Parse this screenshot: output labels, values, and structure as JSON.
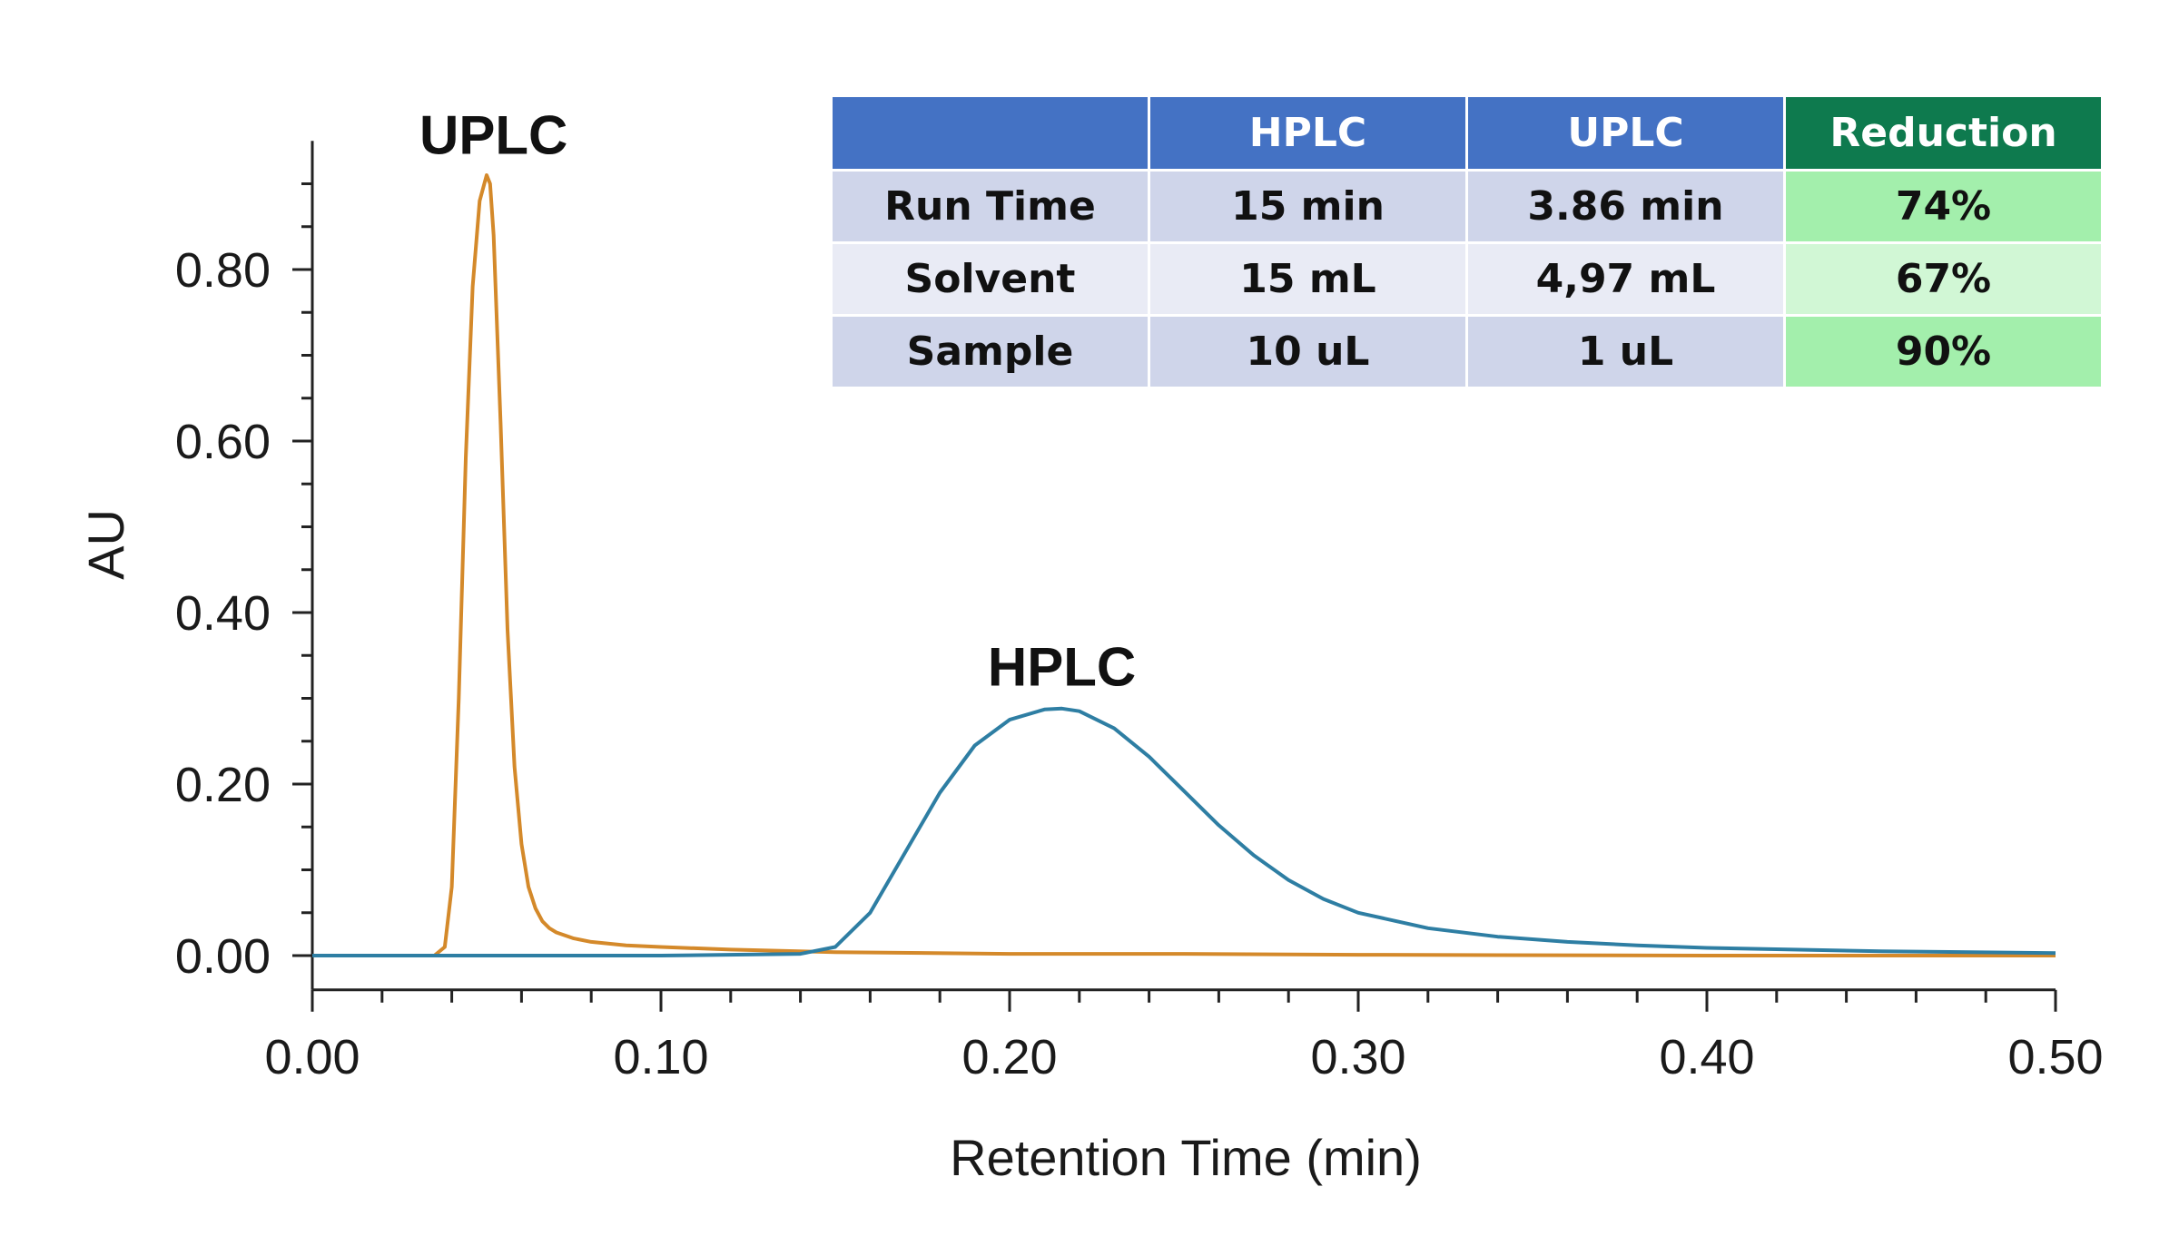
{
  "chart_data": {
    "type": "line",
    "title": "",
    "xlabel": "Retention Time (min)",
    "ylabel": "AU",
    "xlim": [
      0.0,
      0.5
    ],
    "ylim": [
      -0.04,
      0.95
    ],
    "x_ticks": [
      "0.00",
      "0.10",
      "0.20",
      "0.30",
      "0.40",
      "0.50"
    ],
    "y_ticks": [
      "0.00",
      "0.20",
      "0.40",
      "0.60",
      "0.80"
    ],
    "grid": false,
    "series": [
      {
        "name": "UPLC",
        "color": "#d4892a",
        "x": [
          0.0,
          0.025,
          0.035,
          0.038,
          0.04,
          0.042,
          0.044,
          0.046,
          0.048,
          0.05,
          0.051,
          0.052,
          0.054,
          0.056,
          0.058,
          0.06,
          0.062,
          0.064,
          0.066,
          0.068,
          0.07,
          0.075,
          0.08,
          0.09,
          0.1,
          0.12,
          0.15,
          0.2,
          0.25,
          0.3,
          0.4,
          0.5
        ],
        "y": [
          0.0,
          0.0,
          0.0,
          0.01,
          0.08,
          0.3,
          0.58,
          0.78,
          0.88,
          0.91,
          0.9,
          0.84,
          0.62,
          0.38,
          0.22,
          0.13,
          0.08,
          0.055,
          0.04,
          0.032,
          0.027,
          0.02,
          0.016,
          0.012,
          0.01,
          0.007,
          0.004,
          0.002,
          0.002,
          0.001,
          0.0,
          0.0
        ]
      },
      {
        "name": "HPLC",
        "color": "#2e7ea3",
        "x": [
          0.0,
          0.1,
          0.14,
          0.15,
          0.16,
          0.17,
          0.18,
          0.19,
          0.2,
          0.21,
          0.215,
          0.22,
          0.23,
          0.24,
          0.25,
          0.26,
          0.27,
          0.28,
          0.29,
          0.3,
          0.32,
          0.34,
          0.36,
          0.38,
          0.4,
          0.45,
          0.5
        ],
        "y": [
          0.0,
          0.0,
          0.002,
          0.01,
          0.05,
          0.12,
          0.19,
          0.245,
          0.275,
          0.287,
          0.288,
          0.285,
          0.265,
          0.232,
          0.192,
          0.152,
          0.117,
          0.088,
          0.066,
          0.05,
          0.032,
          0.022,
          0.016,
          0.012,
          0.009,
          0.005,
          0.003
        ]
      }
    ],
    "annotations": [
      {
        "text": "UPLC",
        "x": 0.052,
        "y": 0.935
      },
      {
        "text": "HPLC",
        "x": 0.215,
        "y": 0.315
      }
    ]
  },
  "table": {
    "headers": [
      "",
      "HPLC",
      "UPLC",
      "Reduction"
    ],
    "rows": [
      [
        "Run Time",
        "15 min",
        "3.86 min",
        "74%"
      ],
      [
        "Solvent",
        "15 mL",
        "4,97 mL",
        "67%"
      ],
      [
        "Sample",
        "10 uL",
        "1 uL",
        "90%"
      ]
    ]
  }
}
